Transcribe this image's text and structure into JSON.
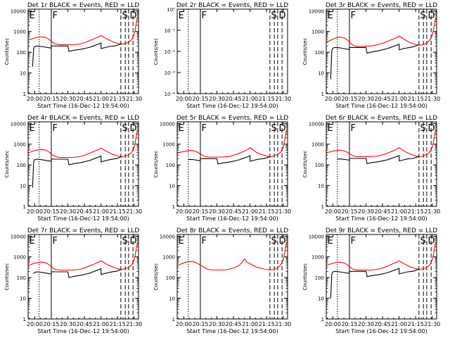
{
  "colors": {
    "events": "#000000",
    "lld": "#ff0000",
    "axes": "#000000",
    "background": "#ffffff"
  },
  "shared": {
    "xlabel": "Start Time (16-Dec-12 19:54:00)",
    "ylabel": "Counts/sec",
    "xticks": [
      "20:00",
      "20:15",
      "20:30",
      "20:45",
      "21:00",
      "21:15",
      "21:30"
    ],
    "xtick_minutes": [
      0,
      15,
      30,
      45,
      60,
      75,
      90
    ],
    "xlim_minutes": [
      -6,
      94
    ],
    "marker_letters": {
      "E": "E",
      "F": "F",
      "S": "S",
      "D": "D"
    },
    "markers": {
      "dotted": [
        4
      ],
      "solid_F": [
        15
      ],
      "dashed": [
        78,
        82,
        85,
        89
      ]
    },
    "log_yticks": [
      "1",
      "10",
      "100",
      "1000",
      "10000"
    ],
    "log_ylim": [
      1,
      12000
    ]
  },
  "chart_data": [
    {
      "type": "line",
      "title": "Det 1r BLACK = Events, RED = LLD",
      "scale": "log",
      "series": [
        {
          "color_key": "lld",
          "x": [
            -6,
            -2,
            2,
            6,
            10,
            13,
            15,
            18,
            22,
            26,
            30,
            34,
            38,
            42,
            46,
            50,
            54,
            58,
            60,
            63,
            66,
            70,
            74,
            76,
            78,
            80,
            82,
            84,
            86,
            88,
            90,
            91,
            92,
            93
          ],
          "y": [
            380,
            450,
            520,
            560,
            510,
            420,
            330,
            260,
            230,
            230,
            230,
            230,
            240,
            260,
            300,
            370,
            450,
            560,
            640,
            520,
            420,
            330,
            280,
            260,
            250,
            255,
            265,
            290,
            330,
            420,
            700,
            1200,
            2500,
            5000
          ]
        },
        {
          "color_key": "events",
          "x": [
            -2,
            -1,
            0,
            2,
            6,
            10,
            13,
            14.9,
            15,
            18,
            22,
            26,
            30,
            31,
            34,
            38,
            42,
            46,
            50,
            54,
            58,
            60,
            60.1,
            64,
            68,
            72,
            74,
            76,
            78
          ],
          "y": [
            20,
            150,
            190,
            200,
            190,
            175,
            165,
            160,
            200,
            200,
            200,
            200,
            200,
            110,
            120,
            130,
            140,
            155,
            175,
            210,
            250,
            280,
            150,
            170,
            190,
            200,
            210,
            230,
            260
          ]
        }
      ]
    },
    {
      "type": "line",
      "title": "Det 2r BLACK = Events, RED = LLD",
      "scale": "log-small",
      "yticks": [
        "10⁻⁴",
        "10⁻³",
        "10⁻²",
        "10⁻¹",
        "10⁰"
      ],
      "series": []
    },
    {
      "type": "line",
      "title": "Det 3r BLACK = Events, RED = LLD",
      "scale": "log",
      "series": [
        {
          "color_key": "lld",
          "x": [
            -6,
            -2,
            2,
            6,
            10,
            13,
            15,
            18,
            22,
            26,
            30,
            34,
            38,
            42,
            46,
            50,
            54,
            58,
            60,
            63,
            66,
            70,
            74,
            76,
            78,
            80,
            82,
            84,
            86,
            88,
            90,
            91,
            92,
            93
          ],
          "y": [
            300,
            380,
            480,
            540,
            500,
            400,
            310,
            220,
            190,
            190,
            195,
            200,
            215,
            240,
            280,
            340,
            420,
            520,
            600,
            480,
            380,
            290,
            240,
            230,
            220,
            225,
            235,
            260,
            300,
            400,
            650,
            1100,
            2200,
            4500
          ]
        },
        {
          "color_key": "events",
          "x": [
            -2,
            -1,
            0,
            2,
            6,
            10,
            13,
            14.9,
            15,
            18,
            22,
            26,
            30,
            31,
            34,
            38,
            42,
            46,
            50,
            54,
            58,
            60,
            60.1,
            64,
            68,
            72,
            74,
            76,
            78
          ],
          "y": [
            5,
            120,
            160,
            170,
            165,
            150,
            140,
            135,
            170,
            170,
            170,
            170,
            170,
            90,
            100,
            110,
            120,
            135,
            155,
            185,
            220,
            250,
            130,
            150,
            165,
            180,
            190,
            210,
            230
          ]
        }
      ]
    },
    {
      "type": "line",
      "title": "Det 4r BLACK = Events, RED = LLD",
      "scale": "log",
      "series": [
        {
          "color_key": "lld",
          "x": [
            -6,
            -2,
            2,
            6,
            10,
            13,
            15,
            18,
            22,
            26,
            30,
            34,
            38,
            42,
            46,
            50,
            54,
            58,
            60,
            63,
            66,
            70,
            74,
            76,
            78,
            80,
            82,
            84,
            86,
            88,
            90,
            91,
            92,
            93
          ],
          "y": [
            380,
            450,
            520,
            560,
            510,
            420,
            330,
            260,
            230,
            230,
            230,
            230,
            240,
            260,
            300,
            370,
            450,
            560,
            640,
            520,
            420,
            330,
            280,
            260,
            250,
            255,
            265,
            290,
            330,
            420,
            700,
            1200,
            2500,
            5000
          ]
        },
        {
          "color_key": "events",
          "x": [
            -2,
            -1,
            0,
            2,
            6,
            10,
            13,
            14.9,
            15,
            18,
            22,
            26,
            30,
            31,
            34,
            38,
            42,
            46,
            50,
            54,
            58,
            60,
            60.1,
            64,
            68,
            72,
            74,
            76,
            78
          ],
          "y": [
            8,
            140,
            180,
            190,
            180,
            165,
            155,
            150,
            190,
            190,
            190,
            190,
            190,
            100,
            110,
            120,
            130,
            145,
            165,
            200,
            240,
            270,
            140,
            160,
            180,
            195,
            200,
            220,
            250
          ]
        }
      ]
    },
    {
      "type": "line",
      "title": "Det 5r BLACK = Events, RED = LLD",
      "scale": "log",
      "series": [
        {
          "color_key": "lld",
          "x": [
            -6,
            -2,
            2,
            6,
            10,
            13,
            15,
            18,
            22,
            26,
            30,
            34,
            38,
            42,
            46,
            50,
            54,
            58,
            60,
            63,
            66,
            70,
            74,
            76,
            78,
            80,
            82,
            84,
            86,
            88,
            90,
            91,
            92,
            93
          ],
          "y": [
            380,
            420,
            470,
            500,
            470,
            400,
            330,
            270,
            240,
            240,
            240,
            240,
            245,
            260,
            300,
            360,
            440,
            560,
            680,
            520,
            400,
            320,
            280,
            260,
            250,
            255,
            270,
            300,
            340,
            430,
            700,
            1200,
            2500,
            5000
          ]
        },
        {
          "color_key": "events",
          "x": [
            4,
            6,
            10,
            13,
            14.9,
            15,
            18,
            22,
            26,
            30,
            31,
            34,
            38,
            42,
            46,
            50,
            54,
            58,
            60,
            60.1,
            64,
            68,
            72,
            74,
            76,
            78
          ],
          "y": [
            180,
            185,
            175,
            165,
            160,
            200,
            200,
            200,
            200,
            200,
            110,
            120,
            130,
            140,
            155,
            175,
            210,
            250,
            280,
            150,
            170,
            190,
            200,
            210,
            230,
            260
          ]
        }
      ]
    },
    {
      "type": "line",
      "title": "Det 6r BLACK = Events, RED = LLD",
      "scale": "log",
      "series": [
        {
          "color_key": "lld",
          "x": [
            -6,
            -2,
            2,
            6,
            10,
            13,
            15,
            18,
            22,
            26,
            30,
            34,
            38,
            42,
            46,
            50,
            54,
            58,
            60,
            63,
            66,
            70,
            74,
            76,
            78,
            80,
            82,
            84,
            86,
            88,
            90,
            91,
            92,
            93
          ],
          "y": [
            380,
            430,
            480,
            510,
            480,
            410,
            340,
            280,
            250,
            250,
            250,
            250,
            260,
            280,
            320,
            380,
            460,
            580,
            680,
            530,
            420,
            330,
            280,
            260,
            250,
            255,
            270,
            300,
            340,
            430,
            700,
            1200,
            2500,
            5000
          ]
        },
        {
          "color_key": "events",
          "x": [
            4,
            6,
            10,
            13,
            14.9,
            15,
            18,
            22,
            26,
            30,
            31,
            34,
            38,
            42,
            46,
            50,
            54,
            58,
            60,
            60.1,
            64,
            68,
            72,
            74,
            76,
            78
          ],
          "y": [
            190,
            195,
            185,
            175,
            170,
            205,
            205,
            205,
            205,
            205,
            115,
            125,
            135,
            145,
            160,
            180,
            215,
            255,
            285,
            155,
            175,
            195,
            205,
            215,
            235,
            265
          ]
        }
      ]
    },
    {
      "type": "line",
      "title": "Det 7r BLACK = Events, RED = LLD",
      "scale": "log",
      "series": [
        {
          "color_key": "lld",
          "x": [
            -6,
            -2,
            2,
            6,
            10,
            13,
            15,
            18,
            22,
            26,
            30,
            34,
            38,
            42,
            46,
            50,
            54,
            58,
            60,
            63,
            66,
            70,
            74,
            76,
            78,
            80,
            82,
            84,
            86,
            88,
            90,
            91,
            92,
            93
          ],
          "y": [
            380,
            450,
            520,
            560,
            510,
            420,
            330,
            260,
            230,
            230,
            230,
            230,
            240,
            260,
            300,
            370,
            450,
            560,
            640,
            520,
            420,
            330,
            280,
            260,
            250,
            255,
            265,
            290,
            330,
            420,
            700,
            1200,
            2500,
            5000
          ]
        },
        {
          "color_key": "events",
          "x": [
            -1,
            0,
            2,
            6,
            10,
            13,
            14.9,
            15,
            18,
            22,
            26,
            30,
            31,
            34,
            38,
            42,
            46,
            50,
            54,
            58,
            60,
            60.1,
            64,
            68,
            72,
            74,
            76,
            78
          ],
          "y": [
            150,
            180,
            190,
            180,
            165,
            155,
            150,
            190,
            190,
            190,
            190,
            190,
            100,
            110,
            120,
            130,
            145,
            165,
            200,
            240,
            270,
            140,
            160,
            180,
            195,
            200,
            220,
            250
          ]
        }
      ]
    },
    {
      "type": "line",
      "title": "Det 8r BLACK = Events, RED = LLD",
      "scale": "log",
      "series": [
        {
          "color_key": "lld",
          "x": [
            -6,
            -2,
            2,
            6,
            10,
            14,
            18,
            22,
            26,
            30,
            34,
            38,
            42,
            46,
            50,
            53,
            55,
            57,
            60,
            63,
            66,
            70,
            74,
            76,
            78,
            80,
            82,
            84,
            86,
            88,
            90,
            91,
            92,
            93
          ],
          "y": [
            380,
            460,
            560,
            600,
            560,
            430,
            320,
            250,
            230,
            230,
            230,
            240,
            260,
            300,
            380,
            560,
            800,
            560,
            470,
            380,
            320,
            280,
            250,
            240,
            235,
            240,
            250,
            280,
            320,
            420,
            700,
            1200,
            2500,
            5000
          ]
        }
      ]
    },
    {
      "type": "line",
      "title": "Det 9r BLACK = Events, RED = LLD",
      "scale": "log",
      "series": [
        {
          "color_key": "lld",
          "x": [
            -6,
            -2,
            2,
            6,
            10,
            13,
            15,
            18,
            22,
            26,
            30,
            34,
            38,
            42,
            46,
            50,
            54,
            58,
            60,
            63,
            66,
            70,
            74,
            76,
            78,
            80,
            82,
            84,
            86,
            88,
            90,
            91,
            92,
            93
          ],
          "y": [
            380,
            450,
            520,
            560,
            510,
            420,
            330,
            260,
            230,
            230,
            230,
            230,
            240,
            260,
            300,
            370,
            450,
            560,
            640,
            520,
            420,
            330,
            280,
            260,
            250,
            255,
            265,
            290,
            330,
            420,
            700,
            1200,
            2500,
            5000
          ]
        },
        {
          "color_key": "events",
          "x": [
            -2,
            -1,
            0,
            2,
            6,
            10,
            13,
            14.9,
            15,
            18,
            22,
            26,
            30,
            31,
            34,
            38,
            42,
            46,
            50,
            54,
            58,
            60,
            60.1,
            64,
            68,
            72,
            74,
            76,
            78
          ],
          "y": [
            10,
            150,
            190,
            200,
            190,
            175,
            165,
            160,
            200,
            200,
            200,
            200,
            200,
            110,
            120,
            130,
            140,
            155,
            175,
            210,
            250,
            280,
            150,
            170,
            190,
            200,
            210,
            230,
            260
          ]
        }
      ]
    }
  ]
}
